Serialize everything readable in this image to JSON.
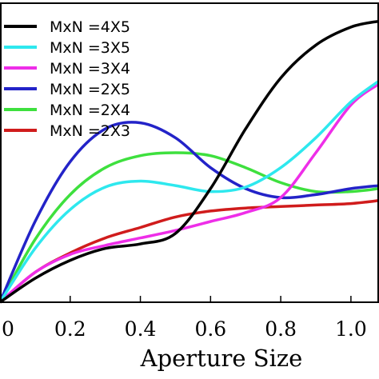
{
  "chart_data": {
    "type": "line",
    "title": "",
    "xlabel": "Aperture Size",
    "ylabel": "",
    "xlim": [
      0,
      1.08
    ],
    "ylim": [
      0,
      1.0
    ],
    "x_ticks": [
      0.0,
      0.2,
      0.4,
      0.6,
      0.8,
      1.0
    ],
    "x_tick_labels": [
      "0",
      "0.2",
      "0.4",
      "0.6",
      "0.8",
      "1.0"
    ],
    "grid": false,
    "legend_position": "top-left",
    "series": [
      {
        "name": "MxN =4X5",
        "color": "#000000",
        "x": [
          0.0,
          0.1,
          0.2,
          0.3,
          0.4,
          0.5,
          0.6,
          0.7,
          0.8,
          0.9,
          1.0,
          1.08
        ],
        "y": [
          0.0,
          0.08,
          0.14,
          0.18,
          0.195,
          0.23,
          0.38,
          0.58,
          0.75,
          0.86,
          0.92,
          0.94
        ]
      },
      {
        "name": "MxN =3X5",
        "color": "#2ee8ee",
        "x": [
          0.0,
          0.1,
          0.2,
          0.3,
          0.4,
          0.5,
          0.6,
          0.7,
          0.8,
          0.9,
          1.0,
          1.08
        ],
        "y": [
          0.0,
          0.18,
          0.31,
          0.385,
          0.405,
          0.39,
          0.37,
          0.385,
          0.45,
          0.55,
          0.67,
          0.74
        ]
      },
      {
        "name": "MxN =3X4",
        "color": "#ee2ee8",
        "x": [
          0.0,
          0.1,
          0.2,
          0.3,
          0.4,
          0.5,
          0.6,
          0.7,
          0.8,
          0.9,
          1.0,
          1.08
        ],
        "y": [
          0.0,
          0.1,
          0.16,
          0.19,
          0.215,
          0.24,
          0.27,
          0.3,
          0.35,
          0.5,
          0.66,
          0.73
        ]
      },
      {
        "name": "MxN =2X5",
        "color": "#2323c8",
        "x": [
          0.0,
          0.1,
          0.2,
          0.3,
          0.4,
          0.5,
          0.6,
          0.7,
          0.8,
          0.9,
          1.0,
          1.08
        ],
        "y": [
          0.0,
          0.27,
          0.47,
          0.58,
          0.6,
          0.55,
          0.45,
          0.38,
          0.35,
          0.36,
          0.38,
          0.39
        ]
      },
      {
        "name": "MxN =2X4",
        "color": "#3ee03e",
        "x": [
          0.0,
          0.1,
          0.2,
          0.3,
          0.4,
          0.5,
          0.6,
          0.7,
          0.8,
          0.9,
          1.0,
          1.08
        ],
        "y": [
          0.0,
          0.21,
          0.36,
          0.45,
          0.49,
          0.5,
          0.49,
          0.45,
          0.4,
          0.37,
          0.37,
          0.38
        ]
      },
      {
        "name": "MxN =2X3",
        "color": "#d01c1c",
        "x": [
          0.0,
          0.1,
          0.2,
          0.3,
          0.4,
          0.5,
          0.6,
          0.7,
          0.8,
          0.9,
          1.0,
          1.08
        ],
        "y": [
          0.0,
          0.1,
          0.165,
          0.215,
          0.25,
          0.285,
          0.305,
          0.315,
          0.32,
          0.325,
          0.33,
          0.34
        ]
      }
    ]
  }
}
